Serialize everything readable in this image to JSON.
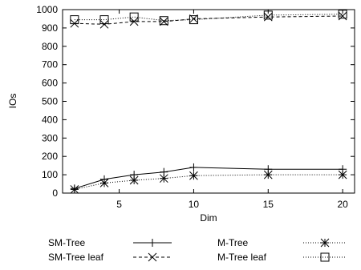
{
  "chart_data": {
    "type": "line",
    "xlabel": "Dim",
    "ylabel": "IOs",
    "xlim": [
      1.2,
      20.8
    ],
    "ylim": [
      0,
      1000
    ],
    "x_ticks": [
      5,
      10,
      15,
      20
    ],
    "y_ticks": [
      0,
      100,
      200,
      300,
      400,
      500,
      600,
      700,
      800,
      900,
      1000
    ],
    "grid": false,
    "legend_position": "bottom",
    "x": [
      2,
      4,
      6,
      8,
      10,
      15,
      20
    ],
    "series": [
      {
        "name": "SM-Tree",
        "marker": "plus",
        "line": "solid",
        "values": [
          25,
          75,
          100,
          115,
          140,
          130,
          130
        ]
      },
      {
        "name": "M-Tree",
        "marker": "asterisk",
        "line": "dotted",
        "values": [
          20,
          55,
          70,
          80,
          95,
          100,
          100
        ]
      },
      {
        "name": "SM-Tree leaf",
        "marker": "x",
        "line": "dashed",
        "values": [
          925,
          920,
          935,
          935,
          950,
          960,
          965
        ]
      },
      {
        "name": "M-Tree leaf",
        "marker": "square",
        "line": "dotted",
        "values": [
          945,
          945,
          960,
          940,
          945,
          970,
          975
        ]
      }
    ]
  }
}
